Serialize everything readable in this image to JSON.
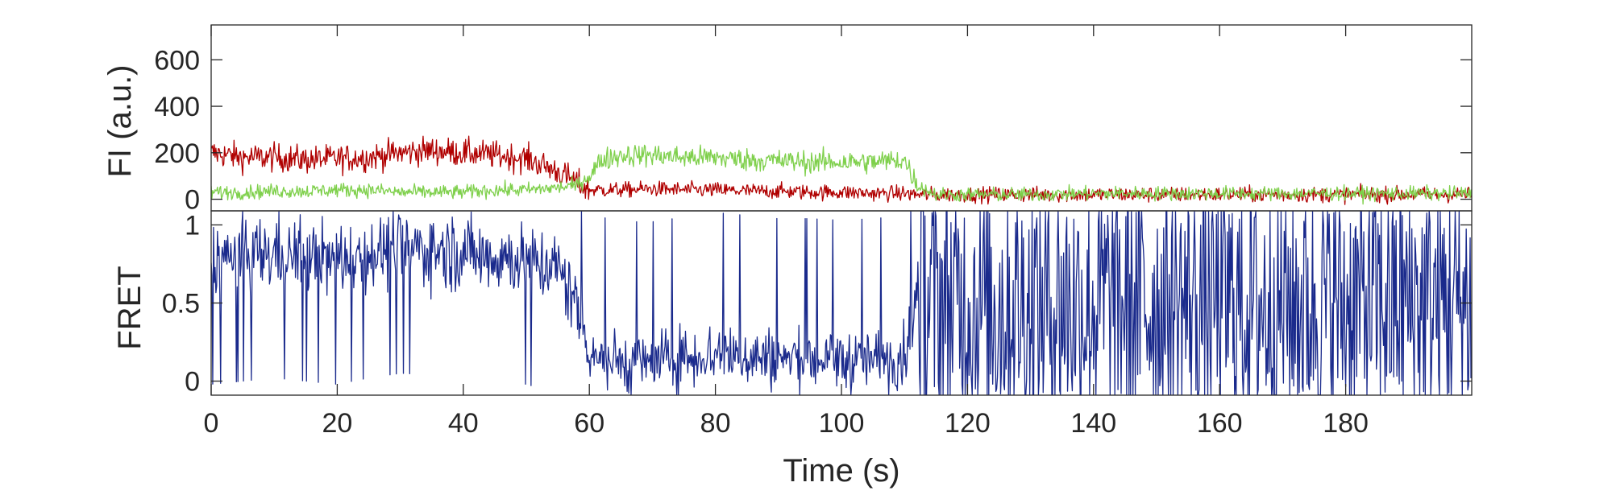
{
  "chart_data": [
    {
      "type": "line",
      "panel": "fluorescence",
      "ylabel": "FI (a.u.)",
      "xlim": [
        0,
        200
      ],
      "ylim": [
        -50,
        750
      ],
      "yticks": [
        0,
        200,
        400,
        600
      ],
      "ytick_labels": [
        "0",
        "200",
        "400",
        "600"
      ],
      "series": [
        {
          "color": "#b00000",
          "x": [
            0,
            5,
            10,
            15,
            20,
            25,
            30,
            35,
            40,
            45,
            50,
            55,
            58,
            60,
            65,
            70,
            75,
            80,
            85,
            90,
            95,
            100,
            105,
            110,
            112,
            115,
            120,
            130,
            140,
            150,
            160,
            170,
            180,
            190,
            200
          ],
          "y": [
            200,
            180,
            180,
            170,
            175,
            180,
            200,
            210,
            200,
            190,
            175,
            120,
            70,
            40,
            40,
            45,
            40,
            40,
            35,
            35,
            30,
            30,
            25,
            25,
            20,
            20,
            20,
            20,
            20,
            20,
            20,
            20,
            20,
            20,
            20
          ]
        },
        {
          "color": "#7fd04c",
          "x": [
            0,
            5,
            10,
            15,
            20,
            25,
            30,
            35,
            40,
            45,
            50,
            55,
            58,
            60,
            62,
            65,
            70,
            75,
            80,
            85,
            90,
            95,
            100,
            105,
            110,
            112,
            115,
            120,
            130,
            140,
            150,
            160,
            170,
            180,
            190,
            200
          ],
          "y": [
            30,
            30,
            35,
            35,
            40,
            40,
            30,
            30,
            30,
            40,
            40,
            50,
            60,
            100,
            170,
            190,
            190,
            180,
            180,
            170,
            165,
            160,
            160,
            160,
            170,
            60,
            20,
            20,
            20,
            25,
            25,
            25,
            25,
            25,
            25,
            25
          ]
        }
      ]
    },
    {
      "type": "line",
      "panel": "fret",
      "ylabel": "FRET",
      "xlabel": "Time (s)",
      "xlim": [
        0,
        200
      ],
      "ylim": [
        -0.09,
        1.09
      ],
      "yticks": [
        0,
        0.5,
        1
      ],
      "ytick_labels": [
        "0",
        "0.5",
        "1"
      ],
      "xticks": [
        0,
        20,
        40,
        60,
        80,
        100,
        120,
        140,
        160,
        180
      ],
      "xtick_labels": [
        "0",
        "20",
        "40",
        "60",
        "80",
        "100",
        "120",
        "140",
        "160",
        "180"
      ],
      "series": [
        {
          "color": "#1a2a8c",
          "x": [
            0,
            5,
            10,
            15,
            20,
            25,
            30,
            35,
            40,
            45,
            50,
            55,
            58,
            60,
            62,
            65,
            70,
            75,
            80,
            85,
            90,
            95,
            100,
            105,
            110,
            112,
            115,
            120,
            130,
            140,
            150,
            160,
            170,
            180,
            190,
            200
          ],
          "y": [
            0.78,
            0.8,
            0.82,
            0.8,
            0.78,
            0.82,
            0.85,
            0.84,
            0.82,
            0.8,
            0.78,
            0.72,
            0.5,
            0.2,
            0.15,
            0.12,
            0.12,
            0.15,
            0.18,
            0.16,
            0.14,
            0.14,
            0.13,
            0.14,
            0.16,
            0.55,
            0.5,
            0.5,
            0.5,
            0.5,
            0.5,
            0.5,
            0.5,
            0.5,
            0.5,
            0.5
          ]
        }
      ]
    }
  ]
}
